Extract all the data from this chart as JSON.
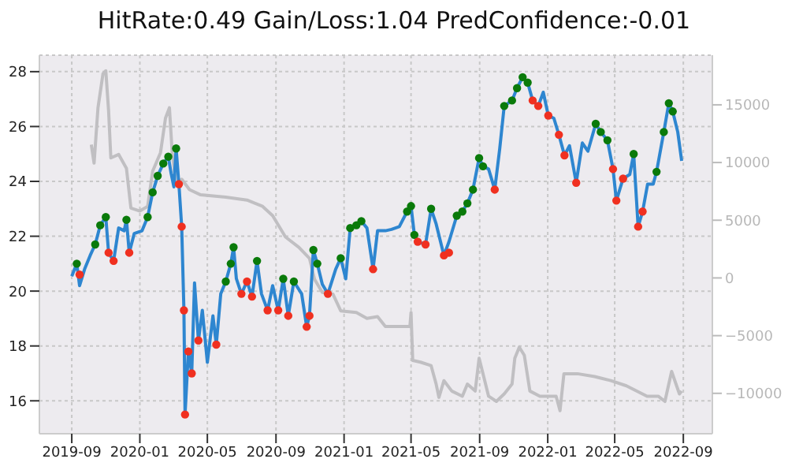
{
  "chart_data": {
    "type": "line",
    "title": "HitRate:0.49 Gain/Loss:1.04 PredConfidence:-0.01",
    "xlim": [
      "2019-07-05",
      "2022-10-23"
    ],
    "xticks": [
      "2019-09",
      "2020-01",
      "2020-05",
      "2020-09",
      "2021-01",
      "2021-05",
      "2021-09",
      "2022-01",
      "2022-05",
      "2022-09"
    ],
    "ylim": [
      14.8,
      28.6
    ],
    "yticks": [
      16,
      18,
      20,
      22,
      24,
      26,
      28
    ],
    "y2lim": [
      -13500,
      19300
    ],
    "y2ticks": [
      15000,
      10000,
      5000,
      0,
      {
        "value": -5000,
        "label": "−5000"
      },
      {
        "value": -10000,
        "label": "−10000"
      }
    ],
    "grid": true,
    "series": [
      {
        "type": "line",
        "axis": "y2",
        "color": "#c0bfc2",
        "x": [
          "2019-10-06",
          "2019-10-11",
          "2019-10-18",
          "2019-10-27",
          "2019-11-01",
          "2019-11-06",
          "2019-11-10",
          "2019-11-24",
          "2019-12-08",
          "2019-12-16",
          "2020-01-01",
          "2020-01-15",
          "2020-01-24",
          "2020-02-07",
          "2020-02-16",
          "2020-02-23",
          "2020-02-28",
          "2020-03-06",
          "2020-03-16",
          "2020-03-30",
          "2020-04-19",
          "2020-06-03",
          "2020-07-11",
          "2020-08-08",
          "2020-08-26",
          "2020-09-18",
          "2020-10-12",
          "2020-10-31",
          "2020-11-09",
          "2020-11-23",
          "2020-12-12",
          "2020-12-26",
          "2021-01-23",
          "2021-02-11",
          "2021-03-02",
          "2021-03-16",
          "2021-04-29",
          "2021-05-01",
          "2021-05-04",
          "2021-05-18",
          "2021-06-06",
          "2021-06-15",
          "2021-06-20",
          "2021-06-29",
          "2021-07-13",
          "2021-08-01",
          "2021-08-10",
          "2021-08-24",
          "2021-08-31",
          "2021-09-07",
          "2021-09-17",
          "2021-10-01",
          "2021-10-15",
          "2021-10-29",
          "2021-11-03",
          "2021-11-11",
          "2021-11-20",
          "2021-11-30",
          "2021-12-18",
          "2022-01-16",
          "2022-01-23",
          "2022-01-30",
          "2022-02-23",
          "2022-03-26",
          "2022-04-24",
          "2022-05-22",
          "2022-06-28",
          "2022-07-18",
          "2022-07-30",
          "2022-08-11",
          "2022-08-25",
          "2022-08-29"
        ],
        "values": [
          11550,
          9950,
          14750,
          17700,
          17950,
          14500,
          10400,
          10700,
          9500,
          6050,
          5800,
          6200,
          9250,
          10850,
          13850,
          14750,
          10850,
          8100,
          8550,
          7650,
          7200,
          7000,
          6750,
          6200,
          5400,
          3550,
          2650,
          1700,
          -100,
          -1250,
          -1400,
          -2850,
          -3000,
          -3500,
          -3350,
          -4200,
          -4200,
          -3000,
          -7150,
          -7300,
          -7600,
          -9200,
          -10350,
          -8900,
          -9800,
          -10250,
          -9200,
          -9800,
          -6950,
          -8300,
          -10250,
          -10700,
          -10050,
          -9200,
          -6950,
          -6000,
          -6700,
          -9800,
          -10250,
          -10250,
          -11500,
          -8300,
          -8300,
          -8550,
          -8900,
          -9350,
          -10250,
          -10250,
          -10700,
          -8100,
          -10050,
          -9800
        ]
      },
      {
        "color": "#2e86d0",
        "x": [
          "2019-09-01",
          "2019-09-10",
          "2019-09-15",
          "2019-09-24",
          "2019-10-04",
          "2019-10-13",
          "2019-10-22",
          "2019-11-01",
          "2019-11-06",
          "2019-11-15",
          "2019-11-24",
          "2019-12-04",
          "2019-12-08",
          "2019-12-13",
          "2019-12-22",
          "2020-01-05",
          "2020-01-15",
          "2020-01-24",
          "2020-02-02",
          "2020-02-12",
          "2020-02-21",
          "2020-02-26",
          "2020-03-02",
          "2020-03-06",
          "2020-03-11",
          "2020-03-16",
          "2020-03-20",
          "2020-03-22",
          "2020-03-28",
          "2020-04-03",
          "2020-04-08",
          "2020-04-15",
          "2020-04-22",
          "2020-05-01",
          "2020-05-11",
          "2020-05-17",
          "2020-05-25",
          "2020-06-03",
          "2020-06-12",
          "2020-06-17",
          "2020-06-22",
          "2020-07-01",
          "2020-07-11",
          "2020-07-20",
          "2020-07-29",
          "2020-08-06",
          "2020-08-17",
          "2020-08-26",
          "2020-09-05",
          "2020-09-14",
          "2020-09-23",
          "2020-10-03",
          "2020-10-17",
          "2020-10-26",
          "2020-10-31",
          "2020-11-07",
          "2020-11-14",
          "2020-11-23",
          "2020-12-03",
          "2020-12-17",
          "2020-12-26",
          "2021-01-04",
          "2021-01-12",
          "2021-01-23",
          "2021-02-01",
          "2021-02-11",
          "2021-02-22",
          "2021-03-02",
          "2021-03-16",
          "2021-03-27",
          "2021-04-10",
          "2021-04-24",
          "2021-05-01",
          "2021-05-07",
          "2021-05-13",
          "2021-05-27",
          "2021-06-06",
          "2021-06-15",
          "2021-06-29",
          "2021-07-08",
          "2021-07-22",
          "2021-08-01",
          "2021-08-10",
          "2021-08-20",
          "2021-08-31",
          "2021-09-07",
          "2021-09-17",
          "2021-09-28",
          "2021-10-07",
          "2021-10-15",
          "2021-10-29",
          "2021-11-07",
          "2021-11-17",
          "2021-11-26",
          "2021-12-05",
          "2021-12-15",
          "2021-12-24",
          "2022-01-02",
          "2022-01-12",
          "2022-01-21",
          "2022-01-31",
          "2022-02-09",
          "2022-02-21",
          "2022-03-04",
          "2022-03-14",
          "2022-03-28",
          "2022-04-06",
          "2022-04-18",
          "2022-04-28",
          "2022-05-04",
          "2022-05-16",
          "2022-05-28",
          "2022-06-04",
          "2022-06-12",
          "2022-06-20",
          "2022-06-29",
          "2022-07-09",
          "2022-07-15",
          "2022-07-28",
          "2022-08-06",
          "2022-08-13",
          "2022-08-22",
          "2022-08-29"
        ],
        "values": [
          20.54,
          21.0,
          20.2,
          20.8,
          21.3,
          21.7,
          22.4,
          22.7,
          21.4,
          21.1,
          22.3,
          22.2,
          22.6,
          21.4,
          22.1,
          22.2,
          22.7,
          23.6,
          24.2,
          24.65,
          24.9,
          24.3,
          23.8,
          25.2,
          23.9,
          22.35,
          19.3,
          15.5,
          17.8,
          17.0,
          20.3,
          18.2,
          19.3,
          17.4,
          19.1,
          18.05,
          19.9,
          20.35,
          21.0,
          21.6,
          20.45,
          19.9,
          20.35,
          19.8,
          21.1,
          19.9,
          19.3,
          20.2,
          19.3,
          20.45,
          19.1,
          20.35,
          19.9,
          18.7,
          19.1,
          21.5,
          21.0,
          20.25,
          19.9,
          20.8,
          21.2,
          20.45,
          22.3,
          22.4,
          22.55,
          22.3,
          20.8,
          22.2,
          22.2,
          22.25,
          22.35,
          22.9,
          23.1,
          22.05,
          21.8,
          21.7,
          23.0,
          22.45,
          21.3,
          21.8,
          22.75,
          22.9,
          23.2,
          23.7,
          24.85,
          24.55,
          24.45,
          23.7,
          25.2,
          26.75,
          26.95,
          27.4,
          27.8,
          27.6,
          26.95,
          26.75,
          27.25,
          26.4,
          26.3,
          25.7,
          24.95,
          25.3,
          23.95,
          25.4,
          25.1,
          26.1,
          25.8,
          25.5,
          24.45,
          23.3,
          24.1,
          24.25,
          25.0,
          22.35,
          22.9,
          23.9,
          23.9,
          24.35,
          25.8,
          26.85,
          26.55,
          25.8,
          24.75
        ]
      },
      {
        "type": "scatter",
        "color": "#0a7a0a",
        "x": [
          "2019-09-10",
          "2019-10-13",
          "2019-10-22",
          "2019-11-01",
          "2019-12-08",
          "2020-01-15",
          "2020-01-24",
          "2020-02-02",
          "2020-02-12",
          "2020-02-21",
          "2020-03-06",
          "2020-06-03",
          "2020-06-12",
          "2020-06-17",
          "2020-07-29",
          "2020-09-14",
          "2020-10-03",
          "2020-11-07",
          "2020-11-14",
          "2020-12-26",
          "2021-01-12",
          "2021-01-23",
          "2021-02-01",
          "2021-04-24",
          "2021-05-01",
          "2021-05-07",
          "2021-06-06",
          "2021-07-22",
          "2021-08-01",
          "2021-08-10",
          "2021-08-20",
          "2021-08-31",
          "2021-09-07",
          "2021-10-15",
          "2021-10-29",
          "2021-11-07",
          "2021-11-17",
          "2021-11-26",
          "2022-03-28",
          "2022-04-06",
          "2022-04-18",
          "2022-06-04",
          "2022-07-15",
          "2022-07-28",
          "2022-08-06",
          "2022-08-13"
        ],
        "values": [
          21.0,
          21.7,
          22.4,
          22.7,
          22.6,
          22.7,
          23.6,
          24.2,
          24.65,
          24.9,
          25.2,
          20.35,
          21.0,
          21.6,
          21.1,
          20.45,
          20.35,
          21.5,
          21.0,
          21.2,
          22.3,
          22.4,
          22.55,
          22.9,
          23.1,
          22.05,
          23.0,
          22.75,
          22.9,
          23.2,
          23.7,
          24.85,
          24.55,
          26.75,
          26.95,
          27.4,
          27.8,
          27.6,
          26.1,
          25.8,
          25.5,
          25.0,
          24.35,
          25.8,
          26.85,
          26.55
        ]
      },
      {
        "type": "scatter",
        "color": "#f03020",
        "x": [
          "2019-09-15",
          "2019-11-06",
          "2019-11-15",
          "2019-12-13",
          "2020-03-11",
          "2020-03-16",
          "2020-03-20",
          "2020-03-22",
          "2020-03-28",
          "2020-04-03",
          "2020-04-15",
          "2020-05-17",
          "2020-07-01",
          "2020-07-11",
          "2020-07-20",
          "2020-08-17",
          "2020-09-05",
          "2020-09-23",
          "2020-10-26",
          "2020-10-31",
          "2020-12-03",
          "2021-02-22",
          "2021-05-13",
          "2021-05-27",
          "2021-06-29",
          "2021-07-08",
          "2021-09-28",
          "2021-12-05",
          "2021-12-15",
          "2022-01-02",
          "2022-01-21",
          "2022-01-31",
          "2022-02-21",
          "2022-04-28",
          "2022-05-04",
          "2022-05-16",
          "2022-06-12",
          "2022-06-20"
        ],
        "values": [
          20.6,
          21.4,
          21.1,
          21.4,
          23.9,
          22.35,
          19.3,
          15.5,
          17.8,
          17.0,
          18.2,
          18.05,
          19.9,
          20.35,
          19.8,
          19.3,
          19.3,
          19.1,
          18.7,
          19.1,
          19.9,
          20.8,
          21.8,
          21.7,
          21.3,
          21.4,
          23.7,
          26.95,
          26.75,
          26.4,
          25.7,
          24.95,
          23.95,
          24.45,
          23.3,
          24.1,
          22.35,
          22.9
        ]
      }
    ]
  }
}
